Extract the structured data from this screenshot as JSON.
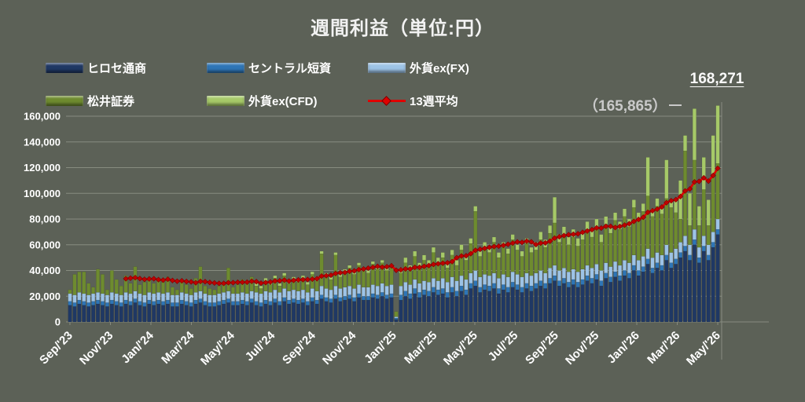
{
  "title": "週間利益（単位:円）",
  "annotations": {
    "latest_value": "168,271",
    "secondary_value": "（165,865）"
  },
  "colors": {
    "background": "#5c6157",
    "gridline": "#878c80",
    "text": "#ffffff",
    "hirose_blue": "#1f3864",
    "central_blue": "#2e75b6",
    "gaikaex_fx_blue": "#9dc3e6",
    "matsui_olive": "#6e8b2f",
    "gaikaex_cfd_green": "#a6c968",
    "average_red": "#e00000"
  },
  "legend": {
    "items": [
      {
        "key": "hirose",
        "label": "ヒロセ通商",
        "color": "#1f3864",
        "type": "bar"
      },
      {
        "key": "central-tanshi",
        "label": "セントラル短資",
        "color": "#2e75b6",
        "type": "bar"
      },
      {
        "key": "gaika-ex-fx",
        "label": "外貨ex(FX)",
        "color": "#9dc3e6",
        "type": "bar"
      },
      {
        "key": "matsui",
        "label": "松井証券",
        "color": "#6e8b2f",
        "type": "bar"
      },
      {
        "key": "gaika-ex-cfd",
        "label": "外貨ex(CFD)",
        "color": "#a6c968",
        "type": "bar"
      },
      {
        "key": "avg-13w",
        "label": "13週平均",
        "color": "#e00000",
        "type": "line"
      }
    ]
  },
  "chart_data": {
    "type": "bar",
    "stacked": true,
    "title": "週間利益（単位:円）",
    "x_range": "weekly, Sep 2023 - May 2026",
    "n_points": 140,
    "value_unit": "yen (values stored in thousands of yen)",
    "value_scale": 1000,
    "ylim": [
      0,
      160000
    ],
    "grid": true,
    "legend_position": "top-left",
    "y_ticks": [
      "0",
      "20,000",
      "40,000",
      "60,000",
      "80,000",
      "100,000",
      "120,000",
      "140,000",
      "160,000"
    ],
    "x_ticks": [
      "Sep/'23",
      "Nov/'23",
      "Jan/'24",
      "Mar/'24",
      "May/'24",
      "Jul/'24",
      "Sep/'24",
      "Nov/'24",
      "Jan/'25",
      "Mar/'25",
      "May/'25",
      "Jul/'25",
      "Sep/'25",
      "Nov/'25",
      "Jan/'26",
      "Mar/'26",
      "May/'26"
    ],
    "series": [
      {
        "name": "ヒロセ通商",
        "color": "#1f3864",
        "values": [
          13,
          12,
          14,
          13,
          12,
          13,
          14,
          13,
          12,
          14,
          13,
          12,
          14,
          13,
          15,
          13,
          12,
          14,
          13,
          14,
          13,
          14,
          12,
          12,
          14,
          13,
          12,
          14,
          15,
          13,
          12,
          12,
          13,
          14,
          15,
          13,
          13,
          14,
          13,
          15,
          13,
          12,
          14,
          13,
          15,
          13,
          16,
          14,
          15,
          14,
          15,
          13,
          16,
          14,
          18,
          16,
          15,
          18,
          16,
          17,
          18,
          16,
          19,
          17,
          17,
          19,
          18,
          20,
          18,
          19,
          2,
          17,
          20,
          18,
          22,
          19,
          21,
          20,
          23,
          21,
          22,
          19,
          23,
          20,
          24,
          21,
          26,
          28,
          23,
          25,
          24,
          26,
          22,
          25,
          23,
          27,
          25,
          23,
          26,
          24,
          26,
          28,
          26,
          30,
          32,
          28,
          30,
          27,
          29,
          27,
          29,
          32,
          30,
          33,
          28,
          34,
          31,
          35,
          32,
          36,
          34,
          40,
          36,
          39,
          45,
          38,
          42,
          40,
          48,
          42,
          45,
          50,
          55,
          48,
          60,
          46,
          55,
          48,
          58,
          68
        ]
      },
      {
        "name": "セントラル短資",
        "color": "#2e75b6",
        "values": [
          3,
          3,
          3,
          3,
          3,
          3,
          3,
          3,
          3,
          3,
          3,
          3,
          3,
          3,
          3,
          3,
          3,
          3,
          3,
          3,
          3,
          3,
          3,
          3,
          3,
          3,
          3,
          3,
          3,
          3,
          3,
          3,
          3,
          3,
          3,
          3,
          3,
          3,
          3,
          3,
          3,
          3,
          3,
          3,
          3,
          3,
          3,
          3,
          3,
          3,
          3,
          3,
          3,
          3,
          3,
          3,
          3,
          3,
          3,
          3,
          3,
          3,
          3,
          3,
          3,
          3,
          3,
          3,
          3,
          3,
          1,
          4,
          4,
          4,
          4,
          4,
          4,
          4,
          4,
          4,
          4,
          4,
          4,
          4,
          4,
          4,
          4,
          4,
          4,
          4,
          4,
          4,
          4,
          4,
          4,
          4,
          4,
          4,
          4,
          4,
          4,
          4,
          4,
          4,
          4,
          4,
          4,
          4,
          4,
          4,
          4,
          4,
          4,
          4,
          4,
          4,
          4,
          4,
          4,
          4,
          4,
          4,
          4,
          4,
          4,
          4,
          4,
          4,
          4,
          4,
          4,
          4,
          4,
          4,
          4,
          4,
          4,
          4,
          4,
          4
        ]
      },
      {
        "name": "外貨ex(FX)",
        "color": "#9dc3e6",
        "values": [
          6,
          6,
          6,
          6,
          6,
          6,
          6,
          6,
          6,
          6,
          6,
          6,
          6,
          6,
          6,
          6,
          6,
          6,
          6,
          6,
          6,
          6,
          6,
          6,
          6,
          6,
          6,
          6,
          6,
          6,
          6,
          6,
          6,
          6,
          6,
          6,
          6,
          6,
          6,
          6,
          7,
          7,
          7,
          7,
          7,
          7,
          7,
          7,
          7,
          7,
          7,
          7,
          7,
          7,
          7,
          7,
          7,
          7,
          7,
          7,
          7,
          7,
          7,
          7,
          7,
          7,
          7,
          7,
          7,
          7,
          1,
          7,
          7,
          7,
          7,
          7,
          7,
          7,
          7,
          7,
          8,
          8,
          8,
          8,
          8,
          8,
          8,
          8,
          8,
          8,
          8,
          8,
          8,
          8,
          8,
          8,
          8,
          8,
          8,
          8,
          8,
          8,
          8,
          8,
          8,
          8,
          8,
          8,
          8,
          8,
          8,
          8,
          8,
          8,
          8,
          8,
          8,
          8,
          8,
          8,
          8,
          8,
          8,
          8,
          8,
          8,
          8,
          8,
          8,
          8,
          8,
          8,
          8,
          8,
          8,
          8,
          8,
          8,
          8,
          8
        ]
      },
      {
        "name": "松井証券",
        "color": "#6e8b2f",
        "values": [
          3,
          16,
          16,
          17,
          9,
          5,
          18,
          15,
          4,
          17,
          11,
          7,
          13,
          8,
          19,
          7,
          10,
          11,
          8,
          9,
          9,
          12,
          6,
          4,
          10,
          7,
          5,
          11,
          19,
          6,
          5,
          4,
          6,
          8,
          18,
          5,
          7,
          10,
          8,
          11,
          5,
          4,
          8,
          6,
          9,
          5,
          10,
          6,
          8,
          7,
          9,
          6,
          11,
          8,
          25,
          10,
          8,
          24,
          9,
          12,
          14,
          11,
          15,
          13,
          11,
          16,
          13,
          16,
          12,
          14,
          4,
          10,
          15,
          11,
          18,
          12,
          16,
          13,
          20,
          14,
          16,
          11,
          17,
          12,
          20,
          15,
          23,
          46,
          16,
          21,
          18,
          24,
          16,
          21,
          18,
          25,
          19,
          16,
          23,
          18,
          18,
          24,
          20,
          27,
          33,
          22,
          26,
          21,
          25,
          20,
          23,
          28,
          24,
          29,
          22,
          30,
          26,
          32,
          28,
          34,
          28,
          37,
          31,
          35,
          41,
          32,
          36,
          32,
          36,
          35,
          28,
          18,
          66,
          15,
          53.865,
          17,
          36,
          15,
          45,
          43.271
        ]
      },
      {
        "name": "外貨ex(CFD)",
        "color": "#a6c968",
        "values": [
          0,
          0,
          0,
          0,
          0,
          0,
          0,
          0,
          0,
          0,
          0,
          0,
          0,
          0,
          0,
          0,
          0,
          0,
          0,
          0,
          0,
          0,
          0,
          0,
          0,
          0,
          0,
          0,
          0,
          0,
          0,
          0,
          0,
          0,
          0,
          0,
          0,
          0,
          0,
          0,
          2,
          2,
          2,
          2,
          2,
          2,
          2,
          2,
          2,
          2,
          2,
          2,
          2,
          2,
          2,
          2,
          2,
          2,
          2,
          2,
          2,
          2,
          2,
          2,
          2,
          2,
          2,
          2,
          2,
          2,
          0,
          4,
          4,
          4,
          4,
          4,
          4,
          4,
          4,
          4,
          4,
          4,
          4,
          4,
          4,
          4,
          4,
          4,
          4,
          4,
          4,
          4,
          4,
          4,
          4,
          4,
          4,
          4,
          4,
          4,
          6,
          6,
          6,
          6,
          20,
          6,
          6,
          6,
          6,
          6,
          6,
          6,
          6,
          6,
          6,
          6,
          6,
          6,
          6,
          6,
          6,
          6,
          6,
          6,
          30,
          6,
          6,
          6,
          30,
          6,
          10,
          30,
          12,
          25,
          40,
          15,
          25,
          20,
          30,
          45
        ]
      }
    ],
    "line_series": {
      "name": "13週平均",
      "type": "moving_average",
      "window": 13,
      "color": "#e00000",
      "marker": "diamond",
      "marker_color": "#c00000"
    }
  }
}
